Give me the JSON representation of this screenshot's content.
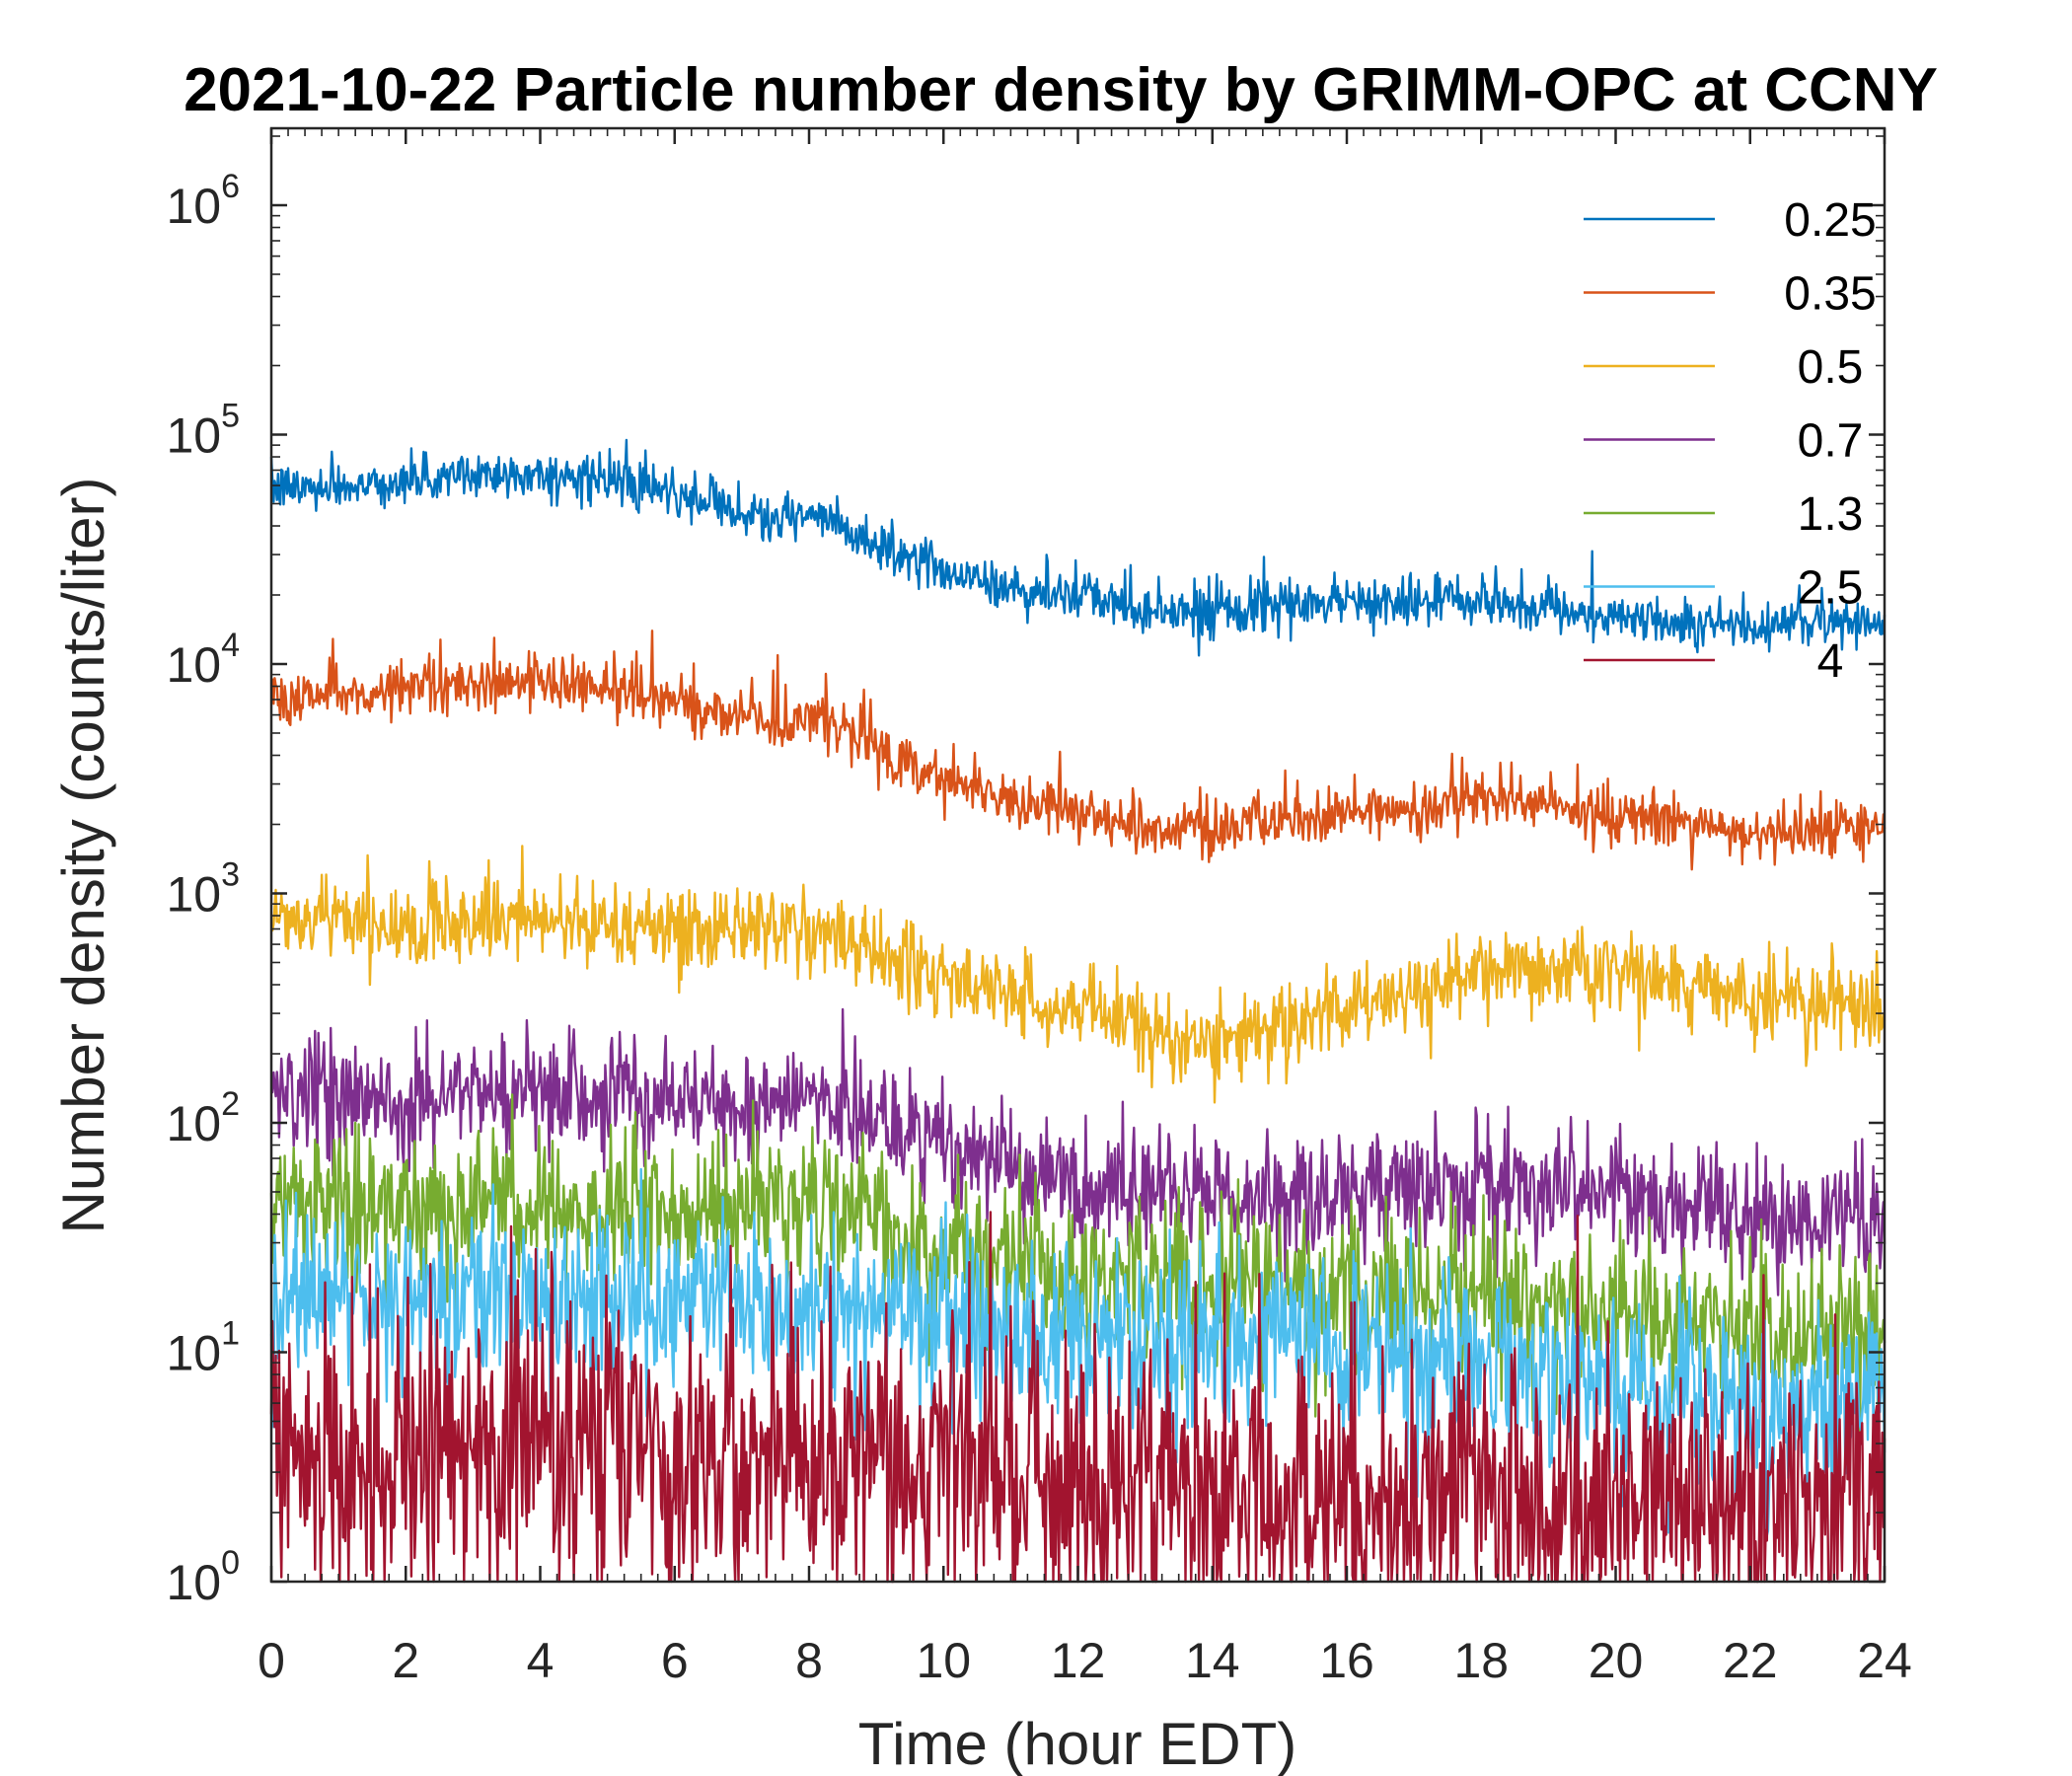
{
  "chart_data": {
    "type": "line",
    "title": "2021-10-22 Particle number density by GRIMM-OPC at CCNY",
    "xlabel": "Time (hour EDT)",
    "ylabel": "Number density (counts/liter)",
    "xlim": [
      0,
      24
    ],
    "ylim": [
      1,
      2000000
    ],
    "yscale": "log",
    "xticks": [
      0,
      2,
      4,
      6,
      8,
      10,
      12,
      14,
      16,
      18,
      20,
      22,
      24
    ],
    "yticks": [
      {
        "base": "10",
        "exp": "0",
        "value": 1
      },
      {
        "base": "10",
        "exp": "1",
        "value": 10
      },
      {
        "base": "10",
        "exp": "2",
        "value": 100
      },
      {
        "base": "10",
        "exp": "3",
        "value": 1000
      },
      {
        "base": "10",
        "exp": "4",
        "value": 10000
      },
      {
        "base": "10",
        "exp": "5",
        "value": 100000
      },
      {
        "base": "10",
        "exp": "6",
        "value": 1000000
      }
    ],
    "legend_position": "top-right",
    "grid": false,
    "series": [
      {
        "name": "0.25",
        "legend_label": "0.25",
        "color": "#0072BD",
        "noise": 0.05,
        "spike_prob": 0.04,
        "spike_amp": 0.2,
        "x": [
          0,
          2,
          3.2,
          5,
          6.5,
          7.5,
          8,
          9,
          10,
          11,
          12,
          13,
          14,
          16,
          18,
          20,
          22,
          24
        ],
        "y": [
          58000,
          62000,
          68000,
          63000,
          50000,
          42000,
          45000,
          33000,
          26000,
          21000,
          20000,
          17000,
          17000,
          18500,
          19000,
          16000,
          14500,
          15500
        ]
      },
      {
        "name": "0.35",
        "legend_label": "0.35",
        "color": "#D95319",
        "noise": 0.06,
        "spike_prob": 0.04,
        "spike_amp": 0.2,
        "x": [
          0,
          2,
          3.2,
          5,
          6.5,
          7.5,
          8,
          9,
          10,
          11,
          12,
          13,
          14,
          16,
          18,
          20,
          22,
          24
        ],
        "y": [
          7200,
          7800,
          8400,
          7800,
          6200,
          5500,
          6000,
          4300,
          3200,
          2600,
          2300,
          1900,
          1900,
          2200,
          2600,
          2200,
          1800,
          2000
        ]
      },
      {
        "name": "0.5",
        "legend_label": " 0.5",
        "color": "#EDB120",
        "noise": 0.09,
        "spike_prob": 0.03,
        "spike_amp": 0.2,
        "x": [
          0,
          2,
          4,
          6,
          8,
          9,
          10,
          11,
          12,
          13,
          14,
          15,
          16,
          18,
          19.5,
          21,
          22,
          24
        ],
        "y": [
          820,
          720,
          760,
          700,
          720,
          560,
          430,
          360,
          320,
          260,
          220,
          260,
          320,
          420,
          480,
          380,
          350,
          310
        ]
      },
      {
        "name": "0.7",
        "legend_label": " 0.7",
        "color": "#7E2F8E",
        "noise": 0.13,
        "spike_prob": 0,
        "spike_amp": 0,
        "x": [
          0,
          2,
          4,
          6,
          8,
          9,
          10,
          11,
          12,
          13,
          14,
          16,
          18,
          20,
          22,
          24
        ],
        "y": [
          140,
          130,
          135,
          125,
          128,
          100,
          80,
          60,
          55,
          50,
          48,
          50,
          55,
          48,
          40,
          38
        ]
      },
      {
        "name": "1.3",
        "legend_label": " 1.3",
        "color": "#77AC30",
        "noise": 0.17,
        "spike_prob": 0,
        "spike_amp": 0,
        "x": [
          0,
          2,
          4,
          6,
          8,
          9,
          10,
          12,
          14,
          16,
          18,
          20,
          22,
          24
        ],
        "y": [
          42,
          44,
          45,
          42,
          44,
          36,
          28,
          22,
          20,
          18,
          18,
          15,
          13,
          12
        ]
      },
      {
        "name": "2.5",
        "legend_label": " 2.5",
        "color": "#4DBEEE",
        "noise": 0.2,
        "spike_prob": 0,
        "spike_amp": 0,
        "x": [
          0,
          2,
          4,
          6,
          8,
          10,
          12,
          14,
          16,
          18,
          20,
          22,
          24
        ],
        "y": [
          17,
          17,
          18,
          17,
          17,
          14,
          12,
          11,
          10,
          9,
          7,
          6,
          6
        ]
      },
      {
        "name": "4",
        "legend_label": "   4",
        "color": "#A2142F",
        "noise": 0.32,
        "spike_prob": 0,
        "spike_amp": 0,
        "x": [
          0,
          4,
          8,
          10,
          12,
          14,
          16,
          18,
          20,
          22,
          24
        ],
        "y": [
          3.5,
          3.8,
          3.8,
          3.3,
          3.0,
          2.8,
          2.6,
          2.5,
          2.4,
          2.3,
          2.2
        ]
      }
    ]
  }
}
